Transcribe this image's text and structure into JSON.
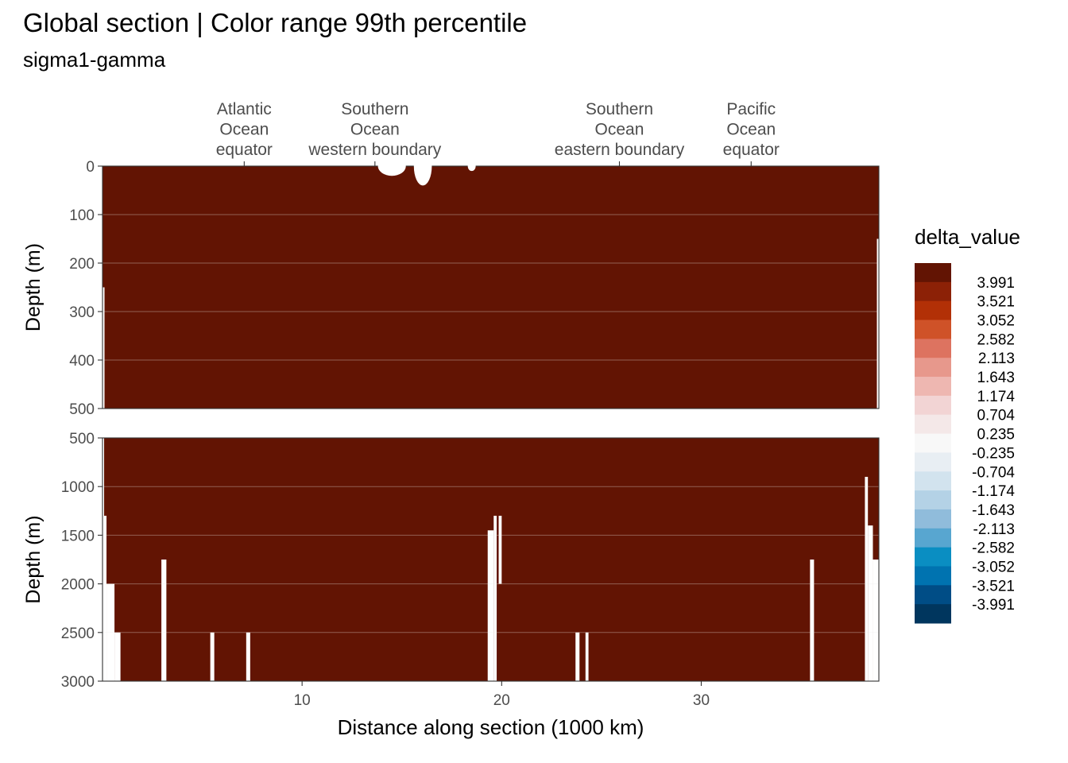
{
  "chart_data": {
    "type": "heatmap",
    "title": "Global section | Color range 99th percentile",
    "subtitle": "sigma1-gamma",
    "xlabel": "Distance along section (1000 km)",
    "ylabel": "Depth (m)",
    "xlim": [
      0,
      38.9
    ],
    "x_ticks": [
      10,
      20,
      30
    ],
    "top_annotations": [
      {
        "x": 7.1,
        "lines": [
          "Atlantic",
          "Ocean",
          "equator"
        ]
      },
      {
        "x": 13.65,
        "lines": [
          "Southern",
          "Ocean",
          "western boundary"
        ]
      },
      {
        "x": 25.9,
        "lines": [
          "Southern",
          "Ocean",
          "eastern boundary"
        ]
      },
      {
        "x": 32.5,
        "lines": [
          "Pacific",
          "Ocean",
          "equator"
        ]
      }
    ],
    "panels": [
      {
        "name": "upper",
        "depth_range": [
          0,
          500
        ],
        "y_ticks": [
          0,
          100,
          200,
          300,
          400,
          500
        ]
      },
      {
        "name": "lower",
        "depth_range": [
          500,
          3000
        ],
        "y_ticks": [
          500,
          1000,
          1500,
          2000,
          2500,
          3000
        ]
      }
    ],
    "field_value_bin": "> 3.991",
    "field_color": "#621403",
    "no_data_regions": [
      {
        "panel": "lower",
        "x": [
          0.0,
          0.08
        ],
        "depth": [
          500,
          3000
        ]
      },
      {
        "panel": "lower",
        "x": [
          0.08,
          0.2
        ],
        "depth": [
          1300,
          3000
        ]
      },
      {
        "panel": "lower",
        "x": [
          0.2,
          0.6
        ],
        "depth": [
          2000,
          3000
        ]
      },
      {
        "panel": "lower",
        "x": [
          0.6,
          0.9
        ],
        "depth": [
          2500,
          3000
        ]
      },
      {
        "panel": "lower",
        "x": [
          2.95,
          3.2
        ],
        "depth": [
          1750,
          3000
        ]
      },
      {
        "panel": "lower",
        "x": [
          5.4,
          5.6
        ],
        "depth": [
          2500,
          3000
        ]
      },
      {
        "panel": "lower",
        "x": [
          7.2,
          7.4
        ],
        "depth": [
          2500,
          3000
        ]
      },
      {
        "panel": "lower",
        "x": [
          19.3,
          19.6
        ],
        "depth": [
          1450,
          3000
        ]
      },
      {
        "panel": "lower",
        "x": [
          19.6,
          19.75
        ],
        "depth": [
          1300,
          3000
        ]
      },
      {
        "panel": "lower",
        "x": [
          19.85,
          20.0
        ],
        "depth": [
          1300,
          2000
        ]
      },
      {
        "panel": "lower",
        "x": [
          23.7,
          23.9
        ],
        "depth": [
          2500,
          3000
        ]
      },
      {
        "panel": "lower",
        "x": [
          24.2,
          24.35
        ],
        "depth": [
          2500,
          3000
        ]
      },
      {
        "panel": "lower",
        "x": [
          35.45,
          35.65
        ],
        "depth": [
          1750,
          3000
        ]
      },
      {
        "panel": "lower",
        "x": [
          38.2,
          38.35
        ],
        "depth": [
          900,
          3000
        ]
      },
      {
        "panel": "lower",
        "x": [
          38.35,
          38.6
        ],
        "depth": [
          1400,
          3000
        ]
      },
      {
        "panel": "lower",
        "x": [
          38.6,
          38.9
        ],
        "depth": [
          1750,
          3000
        ]
      },
      {
        "panel": "upper",
        "x": [
          0.0,
          0.1
        ],
        "depth": [
          250,
          500
        ]
      },
      {
        "panel": "upper",
        "x": [
          38.8,
          38.9
        ],
        "depth": [
          150,
          500
        ]
      }
    ],
    "legend": {
      "title": "delta_value",
      "placement": "right",
      "labels": [
        "3.991",
        "3.521",
        "3.052",
        "2.582",
        "2.113",
        "1.643",
        "1.174",
        "0.704",
        "0.235",
        "-0.235",
        "-0.704",
        "-1.174",
        "-1.643",
        "-2.113",
        "-2.582",
        "-3.052",
        "-3.521",
        "-3.991"
      ],
      "colors": [
        "#621403",
        "#8C2106",
        "#B23006",
        "#CF5228",
        "#DD7360",
        "#E7988C",
        "#EEB7B1",
        "#F2D4D4",
        "#F4E8E8",
        "#F8F8F8",
        "#E8EEF3",
        "#D2E3EE",
        "#B4D2E6",
        "#90BCDB",
        "#58A6D0",
        "#0A8EC2",
        "#0073B0",
        "#004D86",
        "#00365E"
      ]
    },
    "grid": true
  }
}
